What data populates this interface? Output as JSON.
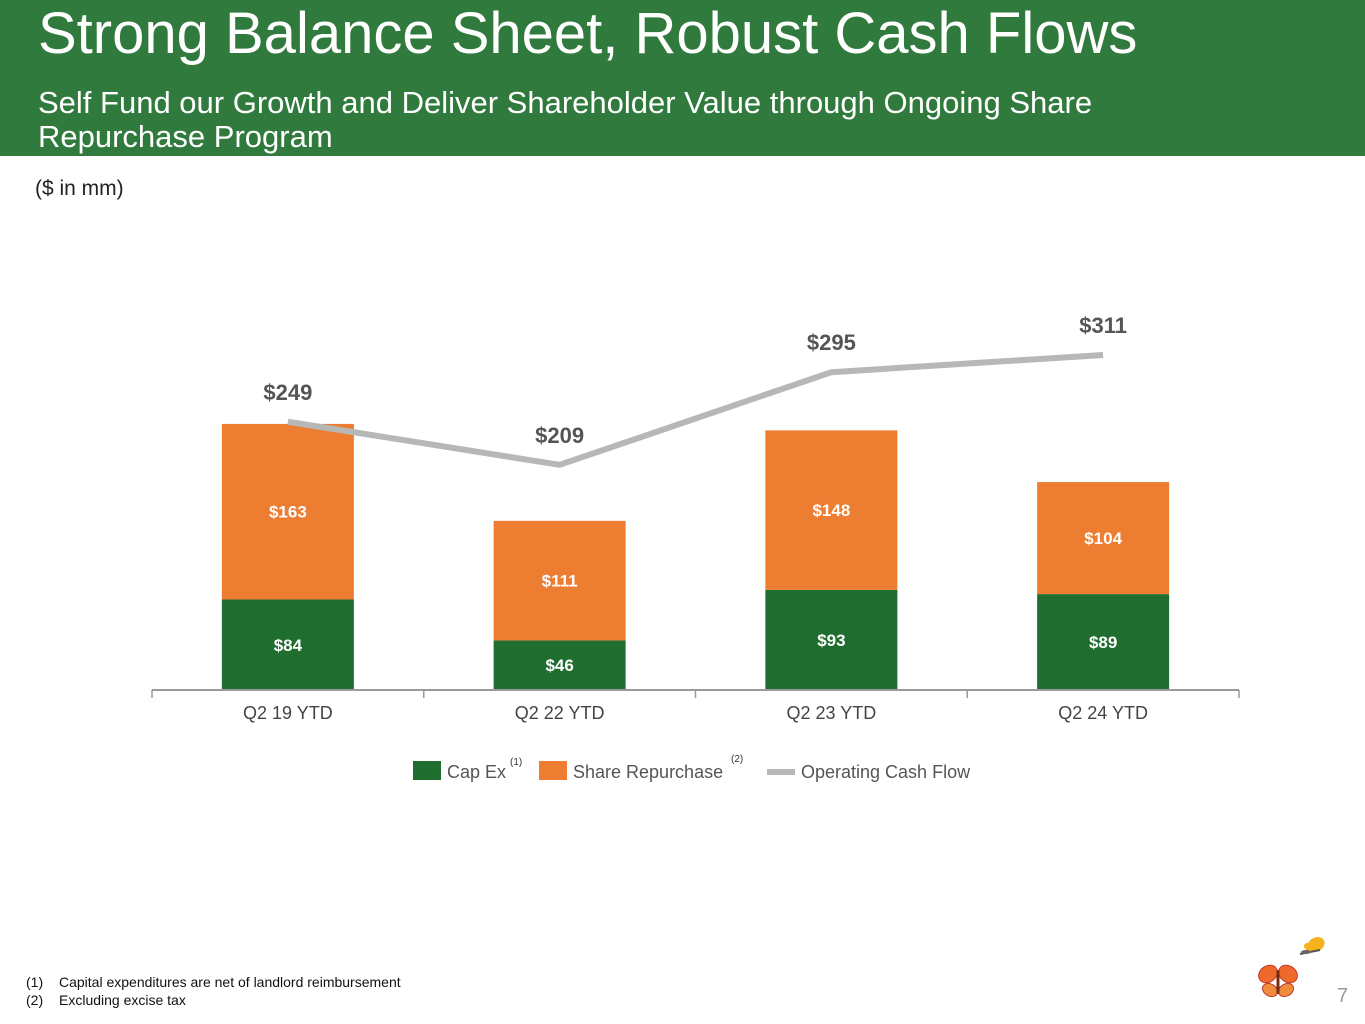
{
  "title": "Strong Balance Sheet, Robust Cash Flows",
  "subtitle": "Self Fund our Growth and Deliver Shareholder Value through Ongoing Share Repurchase Program",
  "units_note": "($ in mm)",
  "page_number": "7",
  "colors": {
    "header": "#2f7a3c",
    "cap_ex": "#1f6e30",
    "share_repurchase": "#ed7d31",
    "operating_cash_flow": "#b7b7b7"
  },
  "chart_data": {
    "type": "bar",
    "stacked": true,
    "categories": [
      "Q2 19 YTD",
      "Q2 22 YTD",
      "Q2 23 YTD",
      "Q2 24 YTD"
    ],
    "series": [
      {
        "name": "Cap Ex",
        "note": "(1)",
        "values": [
          84,
          46,
          93,
          89
        ],
        "labels": [
          "$84",
          "$46",
          "$93",
          "$89"
        ]
      },
      {
        "name": "Share Repurchase",
        "note": "(2)",
        "values": [
          163,
          111,
          148,
          104
        ],
        "labels": [
          "$163",
          "$111",
          "$148",
          "$104"
        ]
      }
    ],
    "line_series": {
      "name": "Operating Cash Flow",
      "values": [
        249,
        209,
        295,
        311
      ],
      "labels": [
        "$249",
        "$209",
        "$295",
        "$311"
      ]
    },
    "ylim": [
      0,
      340
    ],
    "grid": false,
    "legend_position": "bottom",
    "xlabel": "",
    "ylabel": ""
  },
  "footnotes": [
    {
      "num": "(1)",
      "text": "Capital expenditures are net of landlord reimbursement"
    },
    {
      "num": "(2)",
      "text": "Excluding excise tax"
    }
  ]
}
